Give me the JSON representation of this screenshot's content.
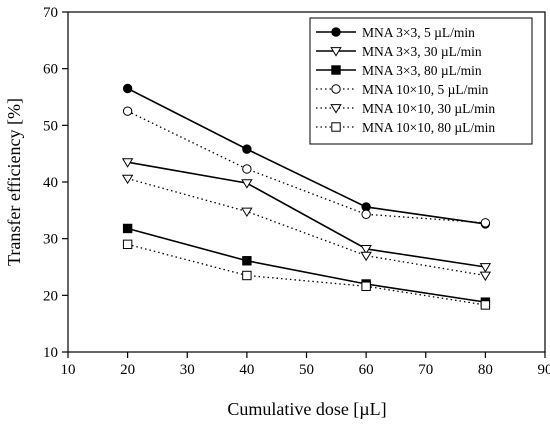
{
  "chart_data": {
    "type": "line",
    "title": "",
    "xlabel": "Cumulative dose [µL]",
    "ylabel": "Transfer efficiency [%]",
    "xlim": [
      10,
      90
    ],
    "ylim": [
      10,
      70
    ],
    "xticks": [
      10,
      20,
      30,
      40,
      50,
      60,
      70,
      80,
      90
    ],
    "yticks": [
      10,
      20,
      30,
      40,
      50,
      60,
      70
    ],
    "x": [
      20,
      40,
      60,
      80
    ],
    "grid": false,
    "legend_position": "top-right",
    "series": [
      {
        "name": "MNA 3×3, 5 µL/min",
        "values": [
          56.5,
          45.8,
          35.6,
          32.6
        ],
        "marker": "filled-circle",
        "line": "solid"
      },
      {
        "name": "MNA 3×3, 30 µL/min",
        "values": [
          43.5,
          39.8,
          28.2,
          25.0
        ],
        "marker": "open-triangle",
        "line": "solid"
      },
      {
        "name": "MNA 3×3, 80 µL/min",
        "values": [
          31.8,
          26.1,
          22.0,
          18.8
        ],
        "marker": "filled-square",
        "line": "solid"
      },
      {
        "name": "MNA 10×10, 5 µL/min",
        "values": [
          52.5,
          42.3,
          34.3,
          32.8
        ],
        "marker": "open-circle",
        "line": "dotted"
      },
      {
        "name": "MNA 10×10, 30 µL/min",
        "values": [
          40.6,
          34.8,
          27.0,
          23.5
        ],
        "marker": "open-triangle",
        "line": "dotted"
      },
      {
        "name": "MNA 10×10, 80 µL/min",
        "values": [
          29.0,
          23.5,
          21.6,
          18.3
        ],
        "marker": "open-square",
        "line": "dotted"
      }
    ]
  }
}
